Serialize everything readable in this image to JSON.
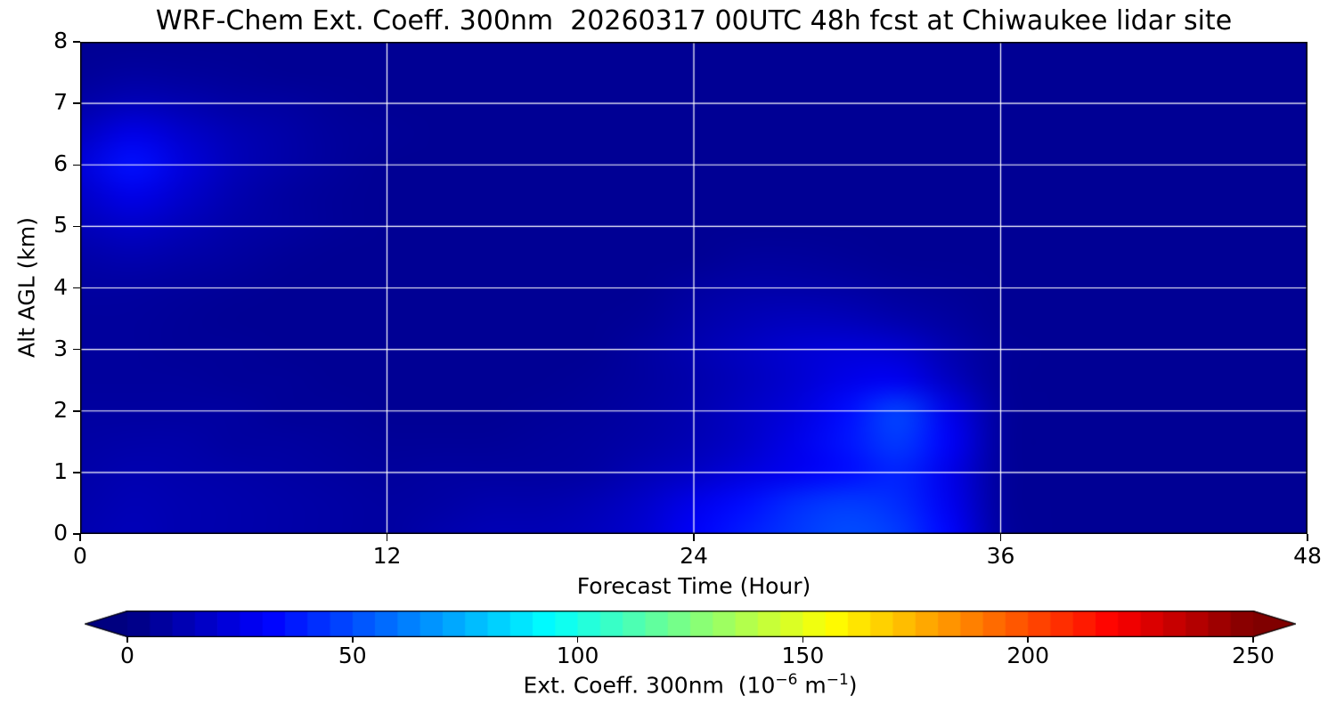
{
  "chart_data": {
    "type": "heatmap",
    "title": "WRF-Chem Ext. Coeff. 300nm  20260317 00UTC 48h fcst at Chiwaukee lidar site",
    "xlabel": "Forecast Time (Hour)",
    "ylabel": "Alt AGL (km)",
    "xlim": [
      0,
      48
    ],
    "ylim": [
      0,
      8
    ],
    "xticks": [
      0,
      12,
      24,
      36,
      48
    ],
    "yticks": [
      0,
      1,
      2,
      3,
      4,
      5,
      6,
      7,
      8
    ],
    "xgrid": [
      12,
      24,
      36
    ],
    "ygrid": [
      1,
      2,
      3,
      4,
      5,
      6,
      7
    ],
    "grid_color": "#ffffff",
    "colormap": "jet",
    "x": [
      0,
      2,
      4,
      6,
      8,
      10,
      12,
      14,
      16,
      18,
      20,
      22,
      24,
      26,
      28,
      30,
      32,
      34,
      36,
      38,
      40,
      42,
      44,
      46,
      48
    ],
    "y": [
      0,
      0.5,
      1,
      1.5,
      2,
      2.5,
      3,
      3.5,
      4,
      4.5,
      5,
      5.5,
      6,
      6.5,
      7,
      7.5,
      8
    ],
    "values": [
      [
        12,
        14,
        12,
        11,
        10,
        9,
        8,
        11,
        13,
        13,
        15,
        20,
        30,
        38,
        45,
        50,
        46,
        32,
        8,
        5,
        5,
        5,
        5,
        5,
        5
      ],
      [
        11,
        13,
        12,
        11,
        10,
        9,
        8,
        9,
        11,
        11,
        13,
        18,
        26,
        34,
        42,
        46,
        42,
        28,
        7,
        5,
        5,
        5,
        5,
        5,
        5
      ],
      [
        10,
        12,
        11,
        10,
        9,
        8,
        7,
        8,
        8,
        8,
        9,
        13,
        17,
        23,
        28,
        34,
        40,
        26,
        7,
        5,
        5,
        5,
        5,
        5,
        5
      ],
      [
        9,
        10,
        10,
        8,
        8,
        7,
        6,
        6,
        6,
        7,
        8,
        10,
        13,
        18,
        26,
        36,
        46,
        30,
        7,
        5,
        5,
        5,
        5,
        5,
        5
      ],
      [
        8,
        8,
        8,
        8,
        6,
        6,
        5,
        5,
        5,
        6,
        7,
        9,
        12,
        17,
        23,
        34,
        48,
        26,
        7,
        5,
        5,
        5,
        5,
        5,
        5
      ],
      [
        7,
        7,
        7,
        6,
        6,
        5,
        5,
        5,
        5,
        5,
        6,
        8,
        11,
        15,
        20,
        26,
        28,
        16,
        6,
        5,
        5,
        5,
        5,
        5,
        5
      ],
      [
        7,
        7,
        6,
        6,
        5,
        5,
        5,
        5,
        5,
        5,
        5,
        8,
        12,
        16,
        20,
        22,
        20,
        12,
        6,
        5,
        5,
        5,
        5,
        5,
        5
      ],
      [
        7,
        7,
        6,
        5,
        5,
        5,
        5,
        5,
        5,
        5,
        5,
        6,
        10,
        13,
        15,
        14,
        11,
        8,
        5,
        5,
        5,
        5,
        5,
        5,
        5
      ],
      [
        8,
        8,
        7,
        6,
        5,
        5,
        5,
        5,
        5,
        5,
        5,
        5,
        8,
        10,
        10,
        9,
        7,
        6,
        5,
        5,
        5,
        5,
        5,
        5,
        5
      ],
      [
        10,
        12,
        10,
        8,
        6,
        5,
        5,
        5,
        5,
        5,
        5,
        5,
        5,
        7,
        7,
        6,
        5,
        5,
        5,
        5,
        5,
        5,
        5,
        5,
        5
      ],
      [
        14,
        18,
        14,
        10,
        8,
        6,
        5,
        5,
        5,
        5,
        5,
        5,
        5,
        5,
        5,
        5,
        5,
        5,
        5,
        5,
        5,
        5,
        5,
        5,
        5
      ],
      [
        18,
        26,
        19,
        12,
        8,
        6,
        5,
        5,
        5,
        5,
        5,
        5,
        5,
        5,
        5,
        5,
        5,
        5,
        5,
        5,
        5,
        5,
        5,
        5,
        5
      ],
      [
        22,
        35,
        23,
        14,
        10,
        7,
        5,
        5,
        5,
        5,
        5,
        5,
        5,
        5,
        5,
        5,
        5,
        5,
        5,
        5,
        5,
        5,
        5,
        5,
        5
      ],
      [
        16,
        26,
        19,
        13,
        10,
        7,
        6,
        5,
        5,
        5,
        5,
        5,
        5,
        5,
        5,
        5,
        5,
        5,
        5,
        5,
        5,
        5,
        5,
        5,
        5
      ],
      [
        10,
        14,
        12,
        9,
        8,
        6,
        5,
        5,
        5,
        5,
        5,
        5,
        5,
        5,
        5,
        5,
        5,
        5,
        5,
        5,
        5,
        5,
        5,
        5,
        5
      ],
      [
        6,
        8,
        7,
        6,
        5,
        5,
        5,
        5,
        5,
        5,
        5,
        5,
        5,
        5,
        5,
        5,
        5,
        5,
        5,
        5,
        5,
        5,
        5,
        5,
        5
      ],
      [
        5,
        5,
        5,
        5,
        5,
        5,
        5,
        5,
        5,
        5,
        5,
        5,
        5,
        5,
        5,
        5,
        5,
        5,
        5,
        5,
        5,
        5,
        5,
        5,
        5
      ]
    ],
    "colorbar": {
      "vmin": 0,
      "vmax": 250,
      "ticks": [
        0,
        50,
        100,
        150,
        200,
        250
      ],
      "levels_step": 5,
      "extend": "both",
      "label_prefix": "Ext. Coeff. 300nm  (10",
      "label_sup1": "−6",
      "label_mid": " m",
      "label_sup2": "−1",
      "label_suffix": ")"
    }
  }
}
